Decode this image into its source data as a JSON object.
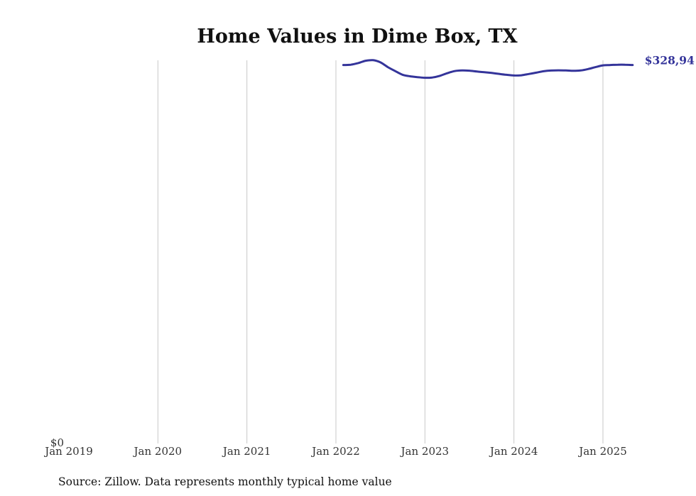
{
  "chart_data": {
    "type": "line",
    "title": "Home Values in Dime Box, TX",
    "xlabel": "",
    "ylabel": "",
    "x_tick_labels": [
      "Jan 2019",
      "Jan 2020",
      "Jan 2021",
      "Jan 2022",
      "Jan 2023",
      "Jan 2024",
      "Jan 2025"
    ],
    "y_tick_labels": [
      "$0"
    ],
    "ylim": [
      0,
      333000
    ],
    "grid": "vertical",
    "legend": "none",
    "series": [
      {
        "color": "#34349a",
        "end_label": "$328,94",
        "points": [
          {
            "x": "2022-02",
            "y": 328900
          },
          {
            "x": "2022-03",
            "y": 329200
          },
          {
            "x": "2022-04",
            "y": 330600
          },
          {
            "x": "2022-05",
            "y": 332600
          },
          {
            "x": "2022-06",
            "y": 333100
          },
          {
            "x": "2022-07",
            "y": 331200
          },
          {
            "x": "2022-08",
            "y": 327100
          },
          {
            "x": "2022-09",
            "y": 323600
          },
          {
            "x": "2022-10",
            "y": 320400
          },
          {
            "x": "2022-11",
            "y": 319100
          },
          {
            "x": "2022-12",
            "y": 318400
          },
          {
            "x": "2023-01",
            "y": 317800
          },
          {
            "x": "2023-02",
            "y": 318100
          },
          {
            "x": "2023-03",
            "y": 319500
          },
          {
            "x": "2023-04",
            "y": 321800
          },
          {
            "x": "2023-05",
            "y": 323600
          },
          {
            "x": "2023-06",
            "y": 324200
          },
          {
            "x": "2023-07",
            "y": 324000
          },
          {
            "x": "2023-08",
            "y": 323300
          },
          {
            "x": "2023-09",
            "y": 322700
          },
          {
            "x": "2023-10",
            "y": 322000
          },
          {
            "x": "2023-11",
            "y": 321200
          },
          {
            "x": "2023-12",
            "y": 320400
          },
          {
            "x": "2024-01",
            "y": 319800
          },
          {
            "x": "2024-02",
            "y": 320000
          },
          {
            "x": "2024-03",
            "y": 321100
          },
          {
            "x": "2024-04",
            "y": 322300
          },
          {
            "x": "2024-05",
            "y": 323500
          },
          {
            "x": "2024-06",
            "y": 324100
          },
          {
            "x": "2024-07",
            "y": 324300
          },
          {
            "x": "2024-08",
            "y": 324200
          },
          {
            "x": "2024-09",
            "y": 323900
          },
          {
            "x": "2024-10",
            "y": 324200
          },
          {
            "x": "2024-11",
            "y": 325400
          },
          {
            "x": "2024-12",
            "y": 327100
          },
          {
            "x": "2025-01",
            "y": 328600
          },
          {
            "x": "2025-02",
            "y": 328900
          },
          {
            "x": "2025-03",
            "y": 329200
          },
          {
            "x": "2025-04",
            "y": 329200
          },
          {
            "x": "2025-05",
            "y": 328900
          }
        ]
      }
    ]
  },
  "footer": {
    "source": "Source: Zillow. Data represents monthly typical home value"
  }
}
